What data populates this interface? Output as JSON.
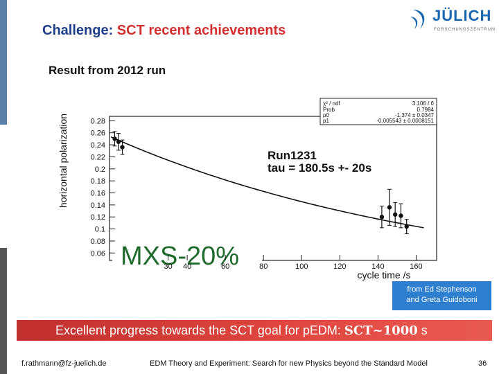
{
  "slide": {
    "title_part1": "Challenge: ",
    "title_part2": "SCT recent achievements",
    "subtitle": "Result from 2012 run",
    "caption": {
      "line1": "from Ed Stephenson",
      "line2": "and Greta Guidoboni"
    },
    "banner": {
      "text": "Excellent progress towards the SCT goal for pEDM: ",
      "formula": "SCT~1000",
      "suffix": " s"
    },
    "footer": {
      "email": "f.rathmann@fz-juelich.de",
      "center": "EDM Theory and Experiment: Search for new Physics beyond the Standard Model",
      "page": "36"
    },
    "logo": {
      "name": "JÜLICH",
      "subtext": "FORSCHUNGSZENTRUM",
      "icon": "juelich-logo-icon"
    },
    "colors": {
      "title_primary": "#1e3f8a",
      "title_accent": "#d32f2f",
      "accent_bar_top": "#5a7fa8",
      "accent_bar_bottom": "#555555",
      "caption_box": "#2e7fd0",
      "banner": "#d83c36",
      "logo_blue": "#1a66b0"
    }
  },
  "chart_data": {
    "type": "scatter",
    "ylabel": "horizontal polarization",
    "xlabel": "cycle time /s",
    "xlim": [
      0,
      170
    ],
    "ylim": [
      0.05,
      0.285
    ],
    "y_ticks": [
      "0.28",
      "0.26",
      "0.24",
      "0.22",
      "0.2",
      "0.18",
      "0.16",
      "0.14",
      "0.12",
      "0.1",
      "0.08",
      "0.06"
    ],
    "x_ticks": [
      "30",
      "40",
      "60",
      "80",
      "100",
      "120",
      "140",
      "160"
    ],
    "overlay_text": "MXS-20%",
    "annotation": {
      "line1": "Run1231",
      "line2": "tau = 180.5s +- 20s"
    },
    "stats_box": {
      "rows": [
        {
          "label": "χ² / ndf",
          "value": "3.106 / 6"
        },
        {
          "label": "Prob",
          "value": "0.7984"
        },
        {
          "label": "p0",
          "value": "-1.374 ± 0.0347"
        },
        {
          "label": "p1",
          "value": "-0.005543 ± 0.0008151"
        }
      ]
    },
    "fit": {
      "p0": -1.374,
      "p1": -0.005543,
      "tau": 180.5
    },
    "series": [
      {
        "points": [
          {
            "x": 2,
            "y": 0.25,
            "err": 0.012
          },
          {
            "x": 4,
            "y": 0.245,
            "err": 0.014
          },
          {
            "x": 6,
            "y": 0.236,
            "err": 0.012
          },
          {
            "x": 142,
            "y": 0.12,
            "err": 0.018
          },
          {
            "x": 146,
            "y": 0.136,
            "err": 0.03
          },
          {
            "x": 149,
            "y": 0.124,
            "err": 0.02
          },
          {
            "x": 152,
            "y": 0.122,
            "err": 0.02
          },
          {
            "x": 155,
            "y": 0.104,
            "err": 0.012
          }
        ]
      }
    ]
  }
}
